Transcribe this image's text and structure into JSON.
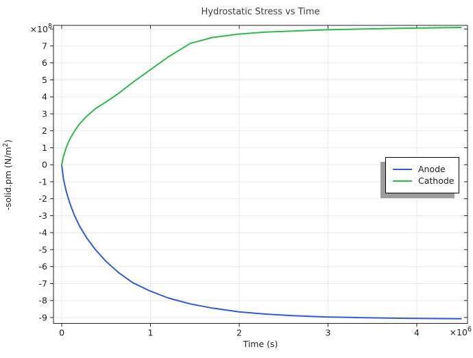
{
  "chart": {
    "title": "Hydrostatic Stress vs Time",
    "xlabel": "Time (s)",
    "ylabel_parts": {
      "pre": "-solid.pm (N/m",
      "sup": "2",
      "post": ")"
    },
    "x_multiplier": {
      "base": "×10",
      "exp": "6"
    },
    "y_multiplier": {
      "base": "×10",
      "exp": "8"
    }
  },
  "chart_data": {
    "type": "line",
    "title": "Hydrostatic Stress vs Time",
    "xlabel": "Time (s)",
    "ylabel": "-solid.pm (N/m^2)",
    "x_axis_multiplier": "x10^6",
    "y_axis_multiplier": "x10^8",
    "x_units_scale": 1000000,
    "y_units_scale": 100000000,
    "xlim": [
      -0.093,
      4.572
    ],
    "ylim": [
      -9.345,
      8.21
    ],
    "x_ticks": [
      0,
      1,
      2,
      3,
      4
    ],
    "y_tick_labels": [
      -9,
      -8,
      -7,
      -6,
      -5,
      -4,
      -3,
      -2,
      -1,
      0,
      1,
      2,
      3,
      4,
      5,
      6,
      7
    ],
    "y_grid": [
      -9,
      -8,
      -7,
      -6,
      -5,
      -4,
      -3,
      -2,
      -1,
      0,
      1,
      2,
      3,
      4,
      5,
      6,
      7,
      8
    ],
    "grid": true,
    "legend_position": "middle-right",
    "colors": {
      "grid": "#e9e9e9",
      "axis": "#222222"
    },
    "series": [
      {
        "name": "Anode",
        "color": "#2e59dd",
        "x": [
          0,
          0.02,
          0.05,
          0.09,
          0.14,
          0.2,
          0.28,
          0.38,
          0.5,
          0.64,
          0.8,
          1.0,
          1.2,
          1.45,
          1.7,
          2.0,
          2.3,
          2.6,
          3.0,
          3.4,
          3.8,
          4.1,
          4.5
        ],
        "y": [
          0,
          -0.85,
          -1.55,
          -2.25,
          -2.95,
          -3.6,
          -4.3,
          -5.0,
          -5.7,
          -6.35,
          -6.95,
          -7.45,
          -7.85,
          -8.2,
          -8.45,
          -8.67,
          -8.8,
          -8.89,
          -8.97,
          -9.01,
          -9.04,
          -9.06,
          -9.07
        ]
      },
      {
        "name": "Cathode",
        "color": "#2eb84b",
        "x": [
          0,
          0.02,
          0.05,
          0.09,
          0.14,
          0.2,
          0.28,
          0.38,
          0.5,
          0.64,
          0.8,
          1.0,
          1.2,
          1.45,
          1.7,
          2.0,
          2.3,
          2.6,
          3.0,
          3.4,
          3.8,
          4.1,
          4.5
        ],
        "y": [
          0,
          0.5,
          1.0,
          1.5,
          1.95,
          2.4,
          2.85,
          3.3,
          3.7,
          4.2,
          4.85,
          5.6,
          6.35,
          7.15,
          7.5,
          7.7,
          7.82,
          7.88,
          7.95,
          8.0,
          8.04,
          8.06,
          8.09
        ]
      }
    ]
  },
  "legend": {
    "items": [
      {
        "label": "Anode",
        "color": "#2e59dd"
      },
      {
        "label": "Cathode",
        "color": "#2eb84b"
      }
    ]
  }
}
